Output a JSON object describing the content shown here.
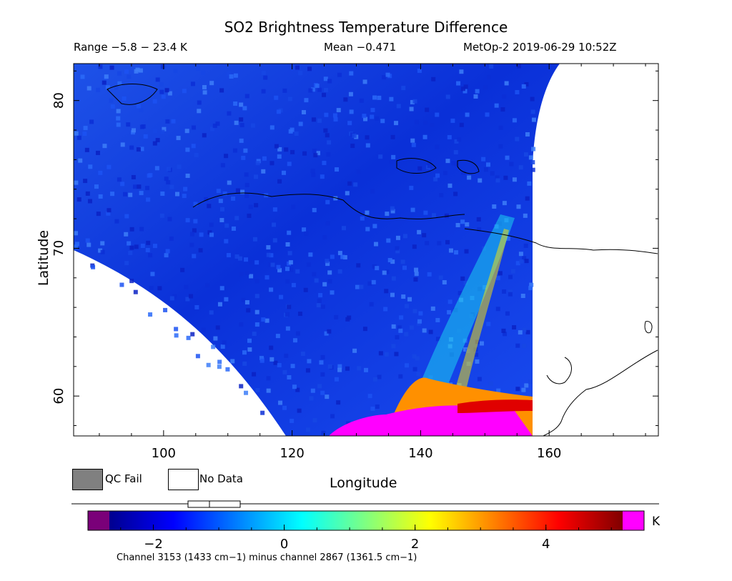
{
  "header": {
    "title": "SO2 Brightness Temperature Difference",
    "range": "Range −5.8 − 23.4 K",
    "mean": "Mean −0.471",
    "satellite_datetime": "MetOp-2 2019-06-29 10:52Z"
  },
  "legend": {
    "qc_fail_label": "QC Fail",
    "qc_fail_color": "#808080",
    "no_data_label": "No Data",
    "no_data_color": "#ffffff"
  },
  "colorbar": {
    "unit": "K",
    "ticks": [
      "−2",
      "0",
      "2",
      "4"
    ],
    "under_color": "#7a0079",
    "over_color": "#ff00ff",
    "colors": [
      "#00008f",
      "#0000ff",
      "#0080ff",
      "#00ffff",
      "#80ff80",
      "#ffff00",
      "#ff8000",
      "#ff0000",
      "#800000"
    ]
  },
  "footer": {
    "channel_note": "Channel 3153 (1433 cm−1) minus channel 2867 (1361.5 cm−1)"
  },
  "chart_data": {
    "type": "heatmap",
    "title": "SO2 Brightness Temperature Difference",
    "xlabel": "Longitude",
    "ylabel": "Latitude",
    "x_ticks": [
      100,
      120,
      140,
      160
    ],
    "y_ticks": [
      60,
      70,
      80
    ],
    "xlim": [
      86,
      177
    ],
    "ylim": [
      57.3,
      82.5
    ],
    "color_range": [
      -3,
      5.5
    ],
    "colorbar_ticks": [
      -2,
      0,
      2,
      4
    ],
    "unit": "K",
    "series": [
      {
        "region": "background",
        "approx_value": -2.2
      },
      {
        "region": "plume",
        "lon": [
          127,
          156
        ],
        "lat": [
          57.5,
          60
        ],
        "approx_value": 5.5
      }
    ]
  }
}
